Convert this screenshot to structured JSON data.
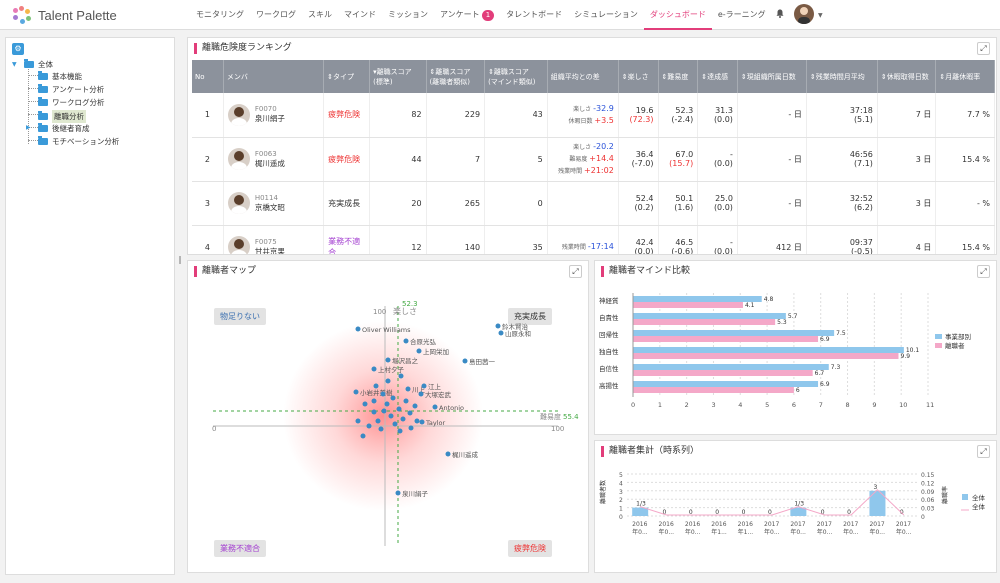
{
  "app": {
    "name": "Talent Palette"
  },
  "nav": {
    "items": [
      {
        "label": "モニタリング"
      },
      {
        "label": "ワークログ"
      },
      {
        "label": "スキル"
      },
      {
        "label": "マインド"
      },
      {
        "label": "ミッション"
      },
      {
        "label": "アンケート",
        "badge": "1"
      },
      {
        "label": "タレントボード"
      },
      {
        "label": "シミュレーション"
      },
      {
        "label": "ダッシュボード",
        "active": true
      },
      {
        "label": "e-ラーニング"
      }
    ]
  },
  "sidebar": {
    "root": "全体",
    "items": [
      "基本機能",
      "アンケート分析",
      "ワークログ分析",
      "離職分析",
      "後継者育成",
      "モチベーション分析"
    ],
    "selected": "離職分析"
  },
  "ranking": {
    "title": "離職危険度ランキング",
    "headers": [
      "No",
      "メンバ",
      "⇕タイプ",
      "▾離職スコア\n(標準)",
      "⇕離職スコア\n(離職者類似)",
      "⇕離職スコア\n(マインド類似)",
      "組織平均との差",
      "⇕楽しさ",
      "⇕難易度",
      "⇕達成感",
      "⇕現組織所属日数",
      "⇕残業時間月平均",
      "⇕休暇取得日数",
      "⇕月離休暇率"
    ],
    "rows": [
      {
        "no": "1",
        "code": "F0070",
        "name": "泉川絹子",
        "type": "疲弊危険",
        "type_color": "red",
        "s1": "82",
        "s2": "229",
        "s3": "43",
        "diff": [
          {
            "k": "楽しさ",
            "v": "-32.9",
            "c": "blue"
          },
          {
            "k": "休暇日数",
            "v": "+3.5",
            "c": "red"
          }
        ],
        "fun": "19.6",
        "fun2": "(72.3)",
        "fun2_red": true,
        "diff2": "52.3",
        "diff22": "(-2.4)",
        "ach": "31.3",
        "ach2": "(0.0)",
        "days": "- 日",
        "ot": "37:18",
        "ot2": "(5.1)",
        "vac": "7 日",
        "rate": "7.7 %"
      },
      {
        "no": "2",
        "code": "F0063",
        "name": "梶川遥成",
        "type": "疲弊危険",
        "type_color": "red",
        "s1": "44",
        "s2": "7",
        "s3": "5",
        "diff": [
          {
            "k": "楽しさ",
            "v": "-20.2",
            "c": "blue"
          },
          {
            "k": "難易度",
            "v": "+14.4",
            "c": "red"
          },
          {
            "k": "残業時間",
            "v": "+21:02",
            "c": "red"
          }
        ],
        "fun": "36.4",
        "fun2": "(-7.0)",
        "diff2": "67.0",
        "diff22": "(15.7)",
        "diff22_red": true,
        "ach": "-",
        "ach2": "(0.0)",
        "days": "- 日",
        "ot": "46:56",
        "ot2": "(7.1)",
        "vac": "3 日",
        "rate": "15.4 %"
      },
      {
        "no": "3",
        "code": "H0114",
        "name": "京橋文昭",
        "type": "充実成長",
        "type_color": "black",
        "s1": "20",
        "s2": "265",
        "s3": "0",
        "diff": [],
        "fun": "52.4",
        "fun2": "(0.2)",
        "diff2": "50.1",
        "diff22": "(1.6)",
        "ach": "25.0",
        "ach2": "(0.0)",
        "days": "- 日",
        "ot": "32:52",
        "ot2": "(6.2)",
        "vac": "3 日",
        "rate": "- %"
      },
      {
        "no": "4",
        "code": "F0075",
        "name": "甘井京果",
        "type": "業務不適合",
        "type_color": "purple",
        "s1": "12",
        "s2": "140",
        "s3": "35",
        "diff": [
          {
            "k": "残業時間",
            "v": "-17:14",
            "c": "blue"
          }
        ],
        "fun": "42.4",
        "fun2": "(0.0)",
        "diff2": "46.5",
        "diff22": "(-0.6)",
        "ach": "-",
        "ach2": "(0.0)",
        "days": "412 日",
        "ot": "09:37",
        "ot2": "(-0.5)",
        "vac": "4 日",
        "rate": "15.4 %"
      }
    ]
  },
  "map": {
    "title": "離職者マップ",
    "q_tl": "物足りない",
    "q_tr": "充実成長",
    "q_bl": "業務不適合",
    "q_br": "疲弊危険",
    "y_label": "楽しさ",
    "x_label": "難易度",
    "y_avg": "52.3",
    "x_avg": "55.4",
    "axis_0": "0",
    "axis_100": "100",
    "names": [
      {
        "t": "Oliver Williams"
      },
      {
        "t": "鈴木賢治"
      },
      {
        "t": "山原永和"
      },
      {
        "t": "合原光弘"
      },
      {
        "t": "上岡栄加"
      },
      {
        "t": "島田茜一"
      },
      {
        "t": "堀沢昌之"
      },
      {
        "t": "上村夕子"
      },
      {
        "t": "小岩井美樹"
      },
      {
        "t": "梶川遥成"
      },
      {
        "t": "泉川絹子"
      },
      {
        "t": "江上"
      },
      {
        "t": "川上"
      },
      {
        "t": "大塚宏武"
      },
      {
        "t": "Antonio"
      },
      {
        "t": "Taylor"
      }
    ]
  },
  "mind": {
    "title": "離職者マインド比較",
    "legend": [
      "事業部別",
      "離職者"
    ],
    "chart_data": {
      "type": "bar",
      "categories": [
        "神経質",
        "自責性",
        "回帰性",
        "独自性",
        "自信性",
        "高揚性"
      ],
      "series": [
        {
          "name": "事業部別",
          "values": [
            4.8,
            5.7,
            7.5,
            10.1,
            7.3,
            6.9
          ],
          "color": "#8fc7ec"
        },
        {
          "name": "離職者",
          "values": [
            4.1,
            5.3,
            6.9,
            9.9,
            6.7,
            6
          ],
          "color": "#f4a8c8"
        }
      ],
      "xlim": [
        0,
        11
      ],
      "ticks": [
        "0",
        "1",
        "2",
        "3",
        "4",
        "5",
        "6",
        "7",
        "8",
        "9",
        "10",
        "11"
      ]
    }
  },
  "trend": {
    "title": "離職者集計（時系列）",
    "ylabel_left": "離職者数",
    "ylabel_right": "離職率",
    "legend": [
      "全体",
      "全体"
    ],
    "chart_data": {
      "type": "bar",
      "categories": [
        "2016年0...",
        "2016年0...",
        "2016年0...",
        "2016年1...",
        "2016年1...",
        "2017年0...",
        "2017年0...",
        "2017年0...",
        "2017年0...",
        "2017年0...",
        "2017年0..."
      ],
      "values": [
        1,
        0,
        0,
        0,
        0,
        0,
        1,
        0,
        0,
        3,
        0
      ],
      "labels": [
        "1/3",
        "0",
        "0",
        "0",
        "0",
        "0",
        "1/3",
        "0",
        "0",
        "3",
        "0"
      ],
      "ylim": [
        0,
        5
      ],
      "y2ticks": [
        "0",
        "0.03",
        "0.06",
        "0.09",
        "0.12",
        "0.15"
      ]
    }
  }
}
